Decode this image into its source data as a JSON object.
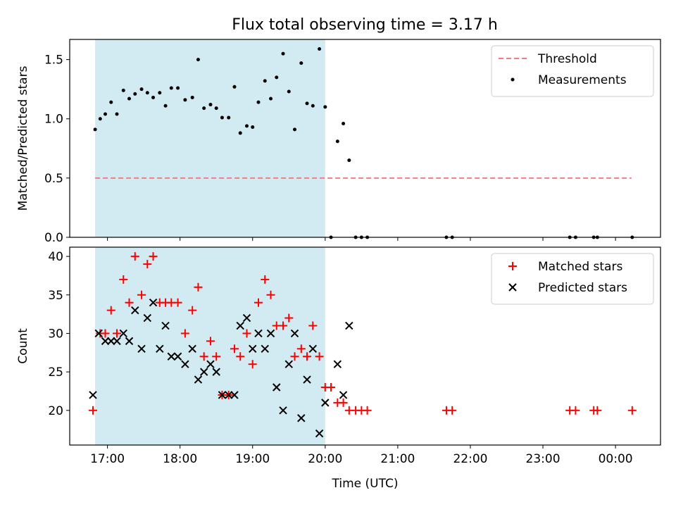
{
  "figure_title": "Flux total observing time = 3.17 h",
  "colors": {
    "shade": "#add8e6",
    "threshold": "#f08080",
    "matched": "#ff0000",
    "predicted": "#000000",
    "measurement": "#000000"
  },
  "chart_data": [
    {
      "type": "scatter",
      "subplot": "top",
      "title": "Flux total observing time = 3.17 h",
      "xlabel": "",
      "ylabel": "Matched/Predicted stars",
      "x_unit": "hours (UTC), values past 24 = next day",
      "xlim": [
        16.48,
        24.62
      ],
      "ylim": [
        0,
        1.67
      ],
      "yticks": [
        0.0,
        0.5,
        1.0,
        1.5
      ],
      "ytick_labels": [
        "0.0",
        "0.5",
        "1.0",
        "1.5"
      ],
      "xticks": [
        17,
        18,
        19,
        20,
        21,
        22,
        23,
        24
      ],
      "xtick_labels": [
        "",
        "",
        "",
        "",
        "",
        "",
        "",
        ""
      ],
      "shaded_span": [
        16.83,
        20.0
      ],
      "legend": {
        "position": "upper right",
        "entries": [
          "Threshold",
          "Measurements"
        ]
      },
      "threshold": {
        "name": "Threshold",
        "y": 0.5,
        "x": [
          16.83,
          24.22
        ],
        "style": "dashed"
      },
      "series": [
        {
          "name": "Measurements",
          "marker": "dot",
          "x": [
            16.83,
            16.9,
            16.97,
            17.05,
            17.13,
            17.22,
            17.3,
            17.38,
            17.47,
            17.55,
            17.63,
            17.72,
            17.8,
            17.88,
            17.97,
            18.07,
            18.17,
            18.25,
            18.33,
            18.42,
            18.5,
            18.58,
            18.67,
            18.75,
            18.83,
            18.92,
            19.0,
            19.08,
            19.17,
            19.25,
            19.33,
            19.42,
            19.5,
            19.58,
            19.67,
            19.75,
            19.83,
            19.92,
            20.0,
            20.08,
            20.17,
            20.25,
            20.33,
            20.42,
            20.5,
            20.58,
            21.67,
            21.75,
            23.37,
            23.45,
            23.7,
            23.75,
            24.23
          ],
          "y": [
            0.91,
            1.0,
            1.04,
            1.14,
            1.04,
            1.24,
            1.17,
            1.21,
            1.25,
            1.22,
            1.18,
            1.22,
            1.11,
            1.26,
            1.26,
            1.16,
            1.18,
            1.5,
            1.09,
            1.12,
            1.09,
            1.01,
            1.01,
            1.27,
            0.88,
            0.94,
            0.93,
            1.14,
            1.32,
            1.17,
            1.35,
            1.55,
            1.23,
            0.91,
            1.47,
            1.13,
            1.11,
            1.59,
            1.1,
            0.0,
            0.81,
            0.96,
            0.65,
            0.0,
            0.0,
            0.0,
            0.0,
            0.0,
            0.0,
            0.0,
            0.0,
            0.0,
            0.0
          ]
        }
      ]
    },
    {
      "type": "scatter",
      "subplot": "bottom",
      "title": "",
      "xlabel": "Time (UTC)",
      "ylabel": "Count",
      "x_unit": "hours (UTC), values past 24 = next day",
      "xlim": [
        16.48,
        24.62
      ],
      "ylim": [
        15.5,
        41.2
      ],
      "yticks": [
        20,
        25,
        30,
        35,
        40
      ],
      "ytick_labels": [
        "20",
        "25",
        "30",
        "35",
        "40"
      ],
      "xticks": [
        17,
        18,
        19,
        20,
        21,
        22,
        23,
        24
      ],
      "xtick_labels": [
        "17:00",
        "18:00",
        "19:00",
        "20:00",
        "21:00",
        "22:00",
        "23:00",
        "00:00"
      ],
      "shaded_span": [
        16.83,
        20.0
      ],
      "legend": {
        "position": "upper right",
        "entries": [
          "Matched stars",
          "Predicted stars"
        ]
      },
      "series": [
        {
          "name": "Matched stars",
          "marker": "plus",
          "x": [
            16.8,
            16.9,
            16.97,
            17.05,
            17.13,
            17.22,
            17.3,
            17.38,
            17.47,
            17.55,
            17.63,
            17.72,
            17.8,
            17.88,
            17.97,
            18.07,
            18.17,
            18.25,
            18.33,
            18.42,
            18.5,
            18.58,
            18.67,
            18.75,
            18.83,
            18.92,
            19.0,
            19.08,
            19.17,
            19.25,
            19.33,
            19.42,
            19.5,
            19.58,
            19.67,
            19.75,
            19.83,
            19.92,
            20.0,
            20.08,
            20.17,
            20.25,
            20.33,
            20.42,
            20.5,
            20.58,
            21.67,
            21.75,
            23.37,
            23.45,
            23.7,
            23.75,
            24.23
          ],
          "y": [
            20,
            30,
            30,
            33,
            30,
            37,
            34,
            40,
            35,
            39,
            40,
            34,
            34,
            34,
            34,
            30,
            33,
            36,
            27,
            29,
            27,
            22,
            22,
            28,
            27,
            30,
            26,
            34,
            37,
            35,
            31,
            31,
            32,
            27,
            28,
            27,
            31,
            27,
            23,
            23,
            21,
            21,
            20,
            20,
            20,
            20,
            20,
            20,
            20,
            20,
            20,
            20,
            20
          ]
        },
        {
          "name": "Predicted stars",
          "marker": "x",
          "x": [
            16.8,
            16.88,
            16.97,
            17.05,
            17.13,
            17.22,
            17.3,
            17.38,
            17.47,
            17.55,
            17.63,
            17.72,
            17.8,
            17.88,
            17.97,
            18.07,
            18.17,
            18.25,
            18.33,
            18.42,
            18.5,
            18.58,
            18.67,
            18.75,
            18.83,
            18.92,
            19.0,
            19.08,
            19.17,
            19.25,
            19.33,
            19.42,
            19.5,
            19.58,
            19.67,
            19.75,
            19.83,
            19.92,
            20.0,
            20.17,
            20.25,
            20.33
          ],
          "y": [
            22,
            30,
            29,
            29,
            29,
            30,
            29,
            33,
            28,
            32,
            34,
            28,
            31,
            27,
            27,
            26,
            28,
            24,
            25,
            26,
            25,
            22,
            22,
            22,
            31,
            32,
            28,
            30,
            28,
            30,
            23,
            20,
            26,
            30,
            19,
            24,
            28,
            17,
            21,
            26,
            22,
            31
          ]
        }
      ]
    }
  ]
}
